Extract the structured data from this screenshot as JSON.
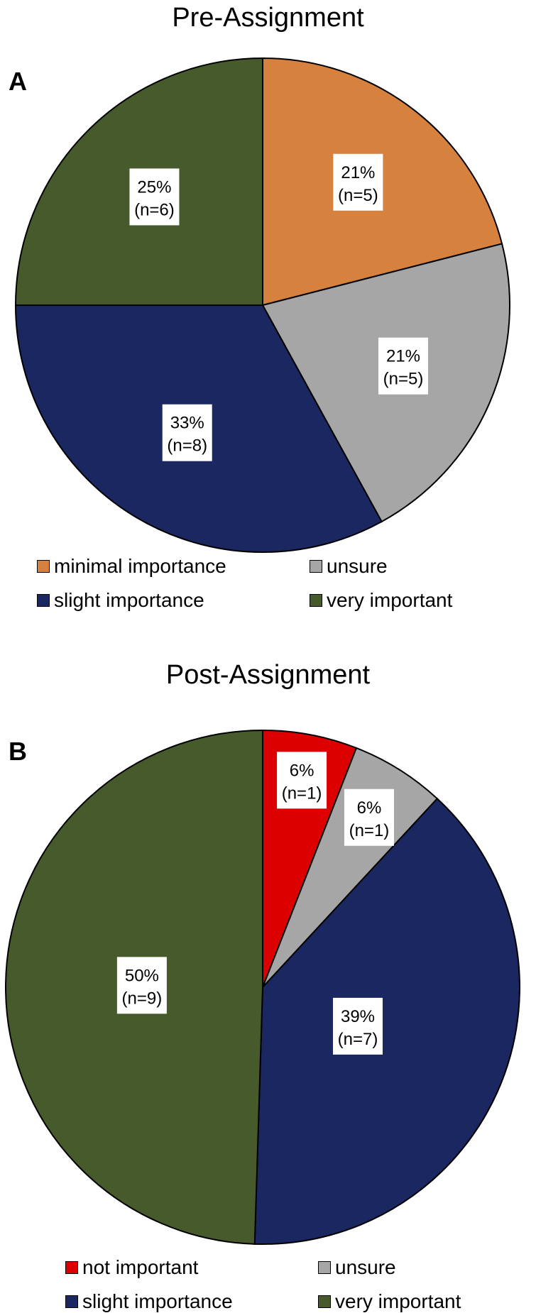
{
  "chart_data": [
    {
      "type": "pie",
      "panel": "A",
      "title": "Pre-Assignment",
      "slices": [
        {
          "name": "minimal importance",
          "value": 21,
          "n_label": "(n=5)",
          "pct_label": "21%",
          "color": "#D7813F"
        },
        {
          "name": "unsure",
          "value": 21,
          "n_label": "(n=5)",
          "pct_label": "21%",
          "color": "#A6A6A6"
        },
        {
          "name": "slight importance",
          "value": 33,
          "n_label": "(n=8)",
          "pct_label": "33%",
          "color": "#1A2760"
        },
        {
          "name": "very important",
          "value": 25,
          "n_label": "(n=6)",
          "pct_label": "25%",
          "color": "#475A2B"
        }
      ],
      "legend": [
        "minimal importance",
        "unsure",
        "slight importance",
        "very important"
      ]
    },
    {
      "type": "pie",
      "panel": "B",
      "title": "Post-Assignment",
      "slices": [
        {
          "name": "not important",
          "value": 6,
          "n_label": "(n=1)",
          "pct_label": "6%",
          "color": "#DC0000"
        },
        {
          "name": "unsure",
          "value": 6,
          "n_label": "(n=1)",
          "pct_label": "6%",
          "color": "#A6A6A6"
        },
        {
          "name": "slight importance",
          "value": 39,
          "n_label": "(n=7)",
          "pct_label": "39%",
          "color": "#1A2760"
        },
        {
          "name": "very important",
          "value": 50,
          "n_label": "(n=9)",
          "pct_label": "50%",
          "color": "#475A2B"
        }
      ],
      "legend": [
        "not important",
        "unsure",
        "slight importance",
        "very important"
      ]
    }
  ]
}
